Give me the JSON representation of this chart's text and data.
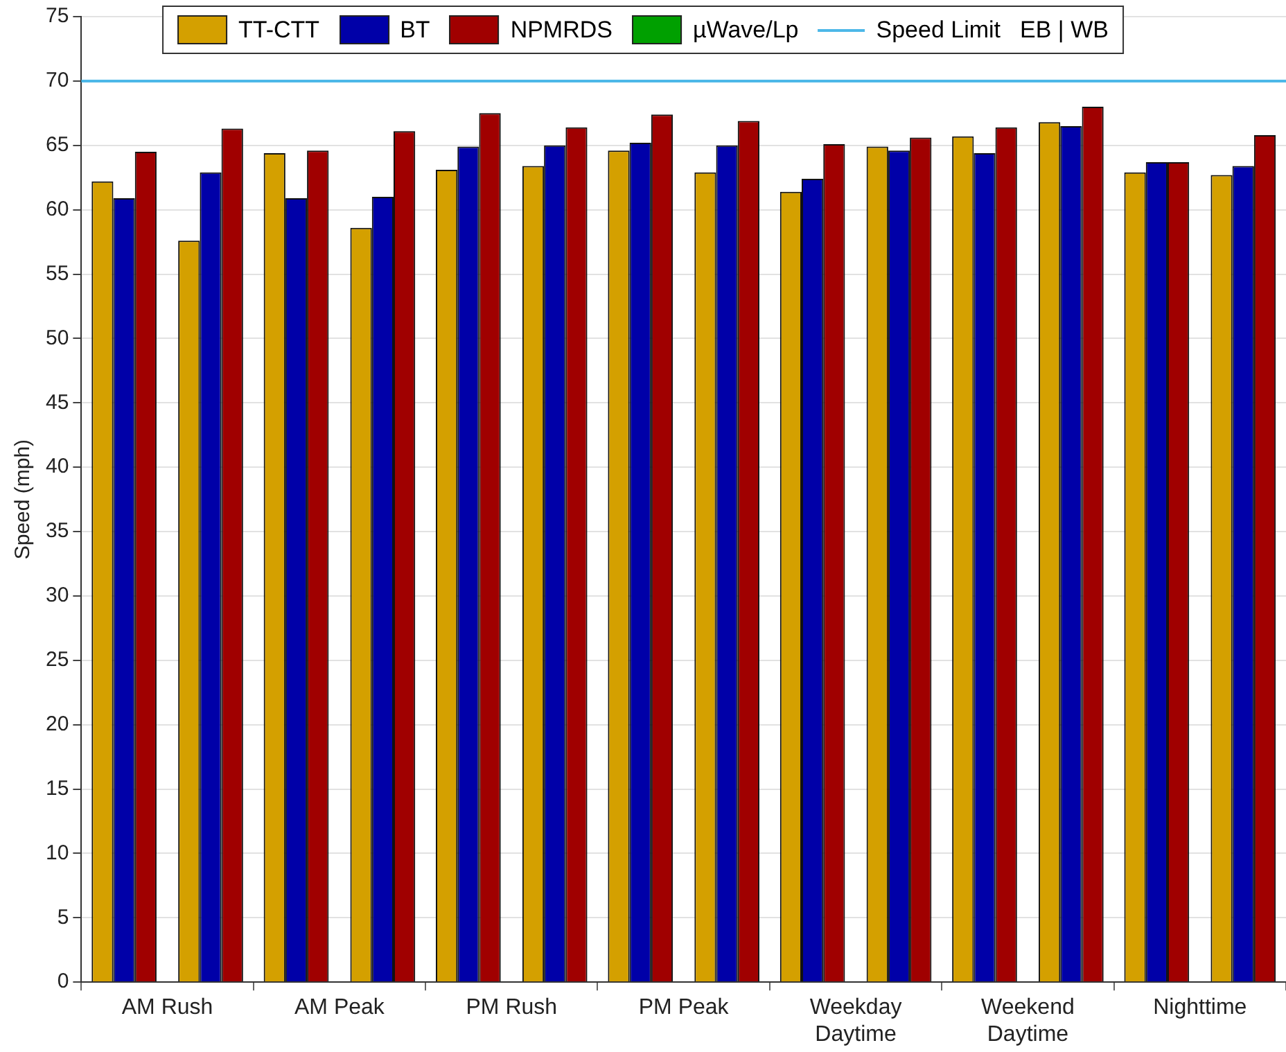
{
  "chart_data": {
    "type": "bar",
    "ylabel": "Speed (mph)",
    "legend_title": "EB | WB",
    "categories": [
      "AM Rush",
      "AM Peak",
      "PM Rush",
      "PM Peak",
      "Weekday\nDaytime",
      "Weekend\nDaytime",
      "Nighttime"
    ],
    "series": [
      {
        "name": "TT-CTT",
        "color": "#d4a000",
        "values": [
          62.2,
          64.4,
          63.1,
          64.6,
          61.4,
          65.7,
          62.9
        ]
      },
      {
        "name": "BT",
        "color": "#0000a8",
        "values": [
          60.9,
          60.9,
          64.9,
          65.2,
          62.4,
          64.4,
          63.7
        ]
      },
      {
        "name": "NPMRDS",
        "color": "#a00000",
        "values": [
          64.5,
          64.6,
          67.5,
          67.4,
          65.1,
          66.4,
          63.7
        ]
      },
      {
        "name": "µWave/Lp",
        "color": "#00a000",
        "values": [
          null,
          null,
          null,
          null,
          null,
          null,
          null
        ]
      },
      {
        "color": "#d4a000",
        "values": [
          57.6,
          58.6,
          63.4,
          62.9,
          64.9,
          66.8,
          62.7
        ]
      },
      {
        "color": "#0000a8",
        "values": [
          62.9,
          61.0,
          65.0,
          65.0,
          64.6,
          66.5,
          63.4
        ]
      },
      {
        "color": "#a00000",
        "values": [
          66.3,
          66.1,
          66.4,
          66.9,
          65.6,
          68.0,
          65.8
        ]
      }
    ],
    "ylim": [
      0,
      75
    ],
    "yticks": [
      0,
      5,
      10,
      15,
      20,
      25,
      30,
      35,
      40,
      45,
      50,
      55,
      60,
      65,
      70,
      75
    ],
    "ref_lines": [
      {
        "axis": "y",
        "value": 70,
        "label": "Speed Limit",
        "color": "#4db8e8"
      }
    ],
    "grid": "y",
    "legend": "top"
  }
}
